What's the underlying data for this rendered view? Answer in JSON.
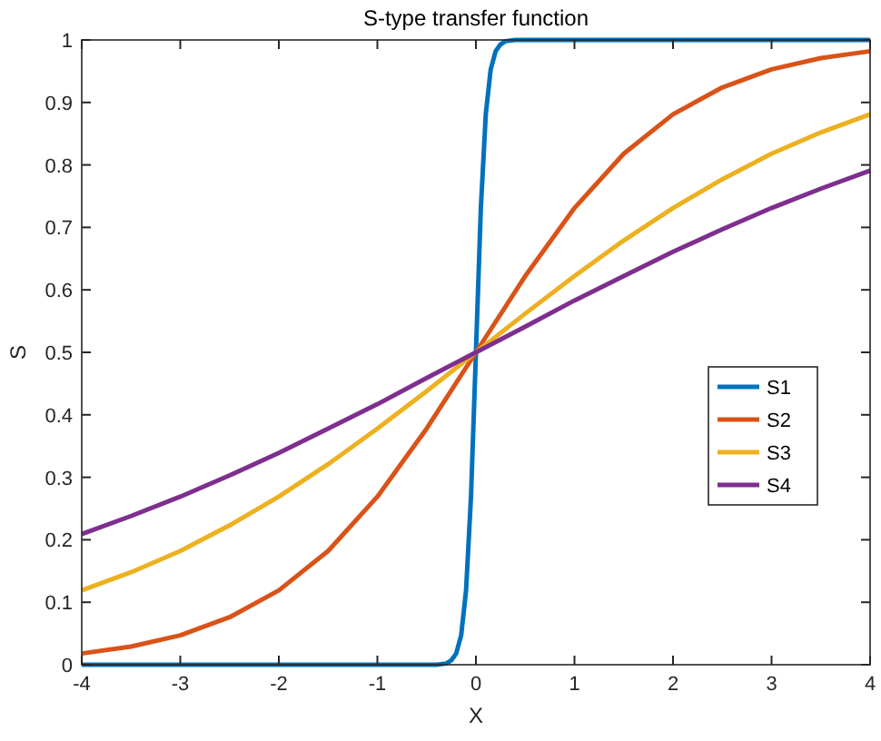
{
  "chart_data": {
    "type": "line",
    "title": "S-type transfer function",
    "xlabel": "X",
    "ylabel": "S",
    "xlim": [
      -4,
      4
    ],
    "xticks": [
      -4,
      -3,
      -2,
      -1,
      0,
      1,
      2,
      3,
      4
    ],
    "ylim": [
      0,
      1
    ],
    "yticks": [
      0,
      0.1,
      0.2,
      0.3,
      0.4,
      0.5,
      0.6,
      0.7,
      0.8,
      0.9,
      1
    ],
    "grid": false,
    "legend": "right",
    "marker": "none",
    "line_style": "solid",
    "series": [
      {
        "name": "S1",
        "color": "#0072bd",
        "x": [
          -4,
          -1,
          -0.4,
          -0.3,
          -0.25,
          -0.2,
          -0.15,
          -0.1,
          -0.05,
          0,
          0.05,
          0.1,
          0.15,
          0.2,
          0.25,
          0.3,
          0.4,
          1,
          4
        ],
        "values": [
          0,
          0,
          0,
          0.002,
          0.007,
          0.018,
          0.047,
          0.119,
          0.269,
          0.5,
          0.731,
          0.881,
          0.953,
          0.982,
          0.993,
          0.998,
          1,
          1,
          1
        ]
      },
      {
        "name": "S2",
        "color": "#d95319",
        "x": [
          -4,
          -3.5,
          -3,
          -2.5,
          -2,
          -1.5,
          -1,
          -0.5,
          0,
          0.5,
          1,
          1.5,
          2,
          2.5,
          3,
          3.5,
          4
        ],
        "values": [
          0.018,
          0.029,
          0.047,
          0.076,
          0.119,
          0.182,
          0.269,
          0.378,
          0.5,
          0.622,
          0.731,
          0.818,
          0.881,
          0.924,
          0.953,
          0.971,
          0.982
        ]
      },
      {
        "name": "S3",
        "color": "#edb120",
        "x": [
          -4,
          -3.5,
          -3,
          -2.5,
          -2,
          -1.5,
          -1,
          -0.5,
          0,
          0.5,
          1,
          1.5,
          2,
          2.5,
          3,
          3.5,
          4
        ],
        "values": [
          0.119,
          0.148,
          0.182,
          0.223,
          0.269,
          0.321,
          0.378,
          0.438,
          0.5,
          0.562,
          0.622,
          0.679,
          0.731,
          0.777,
          0.818,
          0.852,
          0.881
        ]
      },
      {
        "name": "S4",
        "color": "#7e2f8e",
        "x": [
          -4,
          -3.5,
          -3,
          -2.5,
          -2,
          -1.5,
          -1,
          -0.5,
          0,
          0.5,
          1,
          1.5,
          2,
          2.5,
          3,
          3.5,
          4
        ],
        "values": [
          0.209,
          0.238,
          0.269,
          0.303,
          0.339,
          0.378,
          0.417,
          0.459,
          0.5,
          0.541,
          0.583,
          0.622,
          0.661,
          0.697,
          0.731,
          0.762,
          0.791
        ]
      }
    ]
  }
}
